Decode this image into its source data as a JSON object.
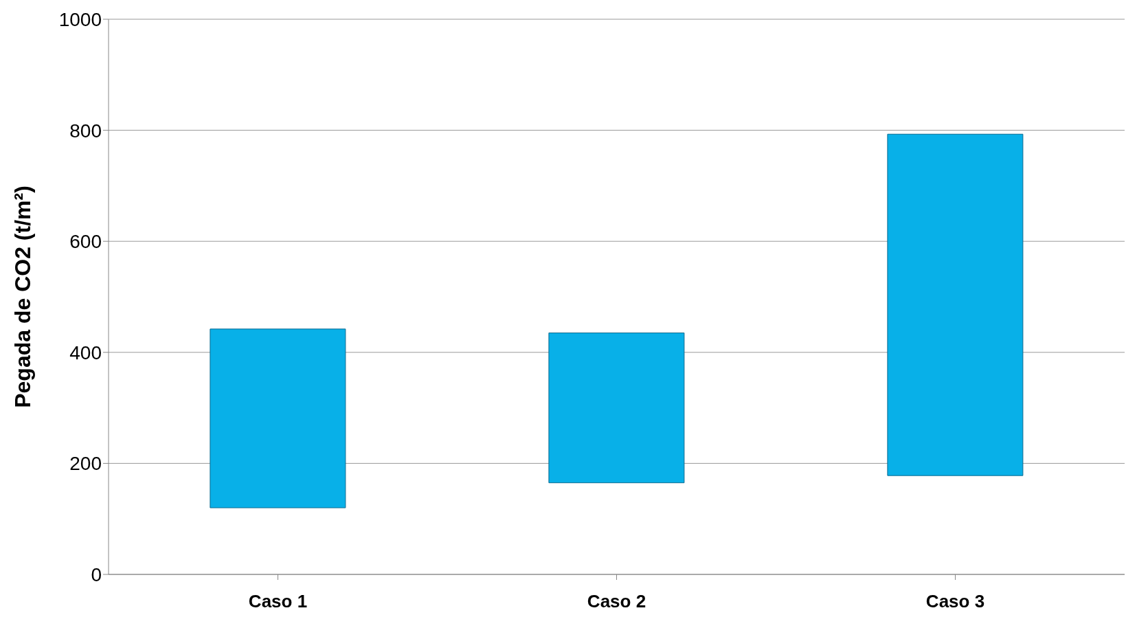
{
  "chart_data": {
    "type": "bar",
    "ylabel": "Pegada de CO2 (t/m²)",
    "categories": [
      "Caso 1",
      "Caso 2",
      "Caso 3"
    ],
    "base": [
      120,
      165,
      178
    ],
    "values": [
      322,
      270,
      615
    ],
    "color": "#08b0e8",
    "ylim": [
      0,
      1000
    ],
    "yticks": [
      0,
      200,
      400,
      600,
      800,
      1000
    ],
    "grid": "y"
  }
}
